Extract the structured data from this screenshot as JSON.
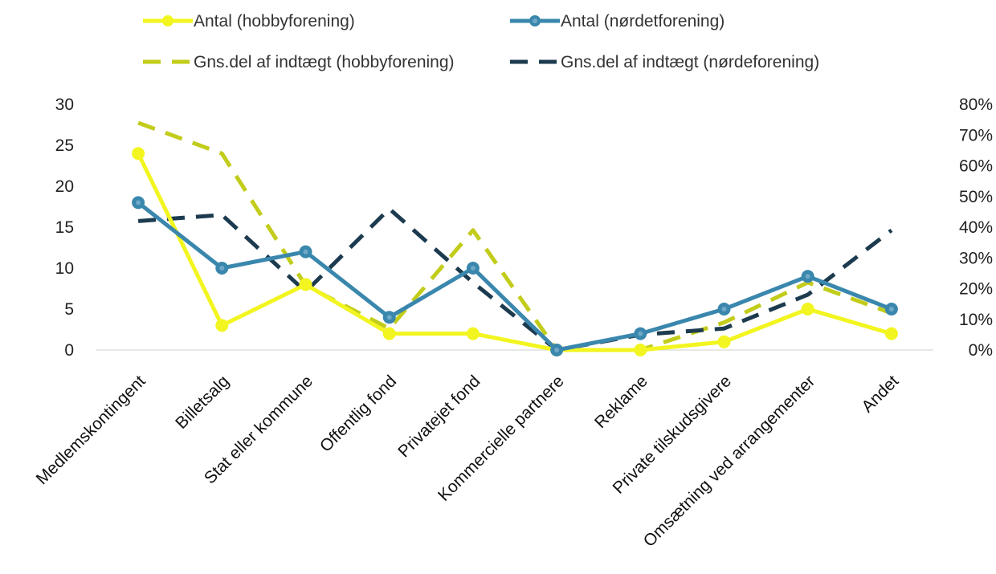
{
  "chart_data": {
    "type": "line",
    "categories": [
      "Medlemskontingent",
      "Billetsalg",
      "Stat eller kommune",
      "Offentlig fond",
      "Privatejet fond",
      "Kommercielle partnere",
      "Reklame",
      "Private tilskudsgivere",
      "Omsætning ved arrangementer",
      "Andet"
    ],
    "series": [
      {
        "name": "Antal (hobbyforening)",
        "axis": "left",
        "style": "solid-markers",
        "color": "#f2f51f",
        "values": [
          24,
          3,
          8,
          2,
          2,
          0,
          0,
          1,
          5,
          2
        ]
      },
      {
        "name": "Antal (nørdetforening)",
        "axis": "left",
        "style": "solid-markers",
        "color": "#3a87ad",
        "values": [
          18,
          10,
          12,
          4,
          10,
          0,
          2,
          5,
          9,
          5
        ]
      },
      {
        "name": "Gns.del af indtægt (hobbyforening)",
        "axis": "right",
        "style": "dashed",
        "color": "#c2cc1b",
        "values": [
          0.74,
          0.64,
          0.21,
          0.07,
          0.39,
          0.0,
          0.0,
          0.09,
          0.22,
          0.12
        ]
      },
      {
        "name": "Gns.del af indtægt (nørdeforening)",
        "axis": "right",
        "style": "dashed",
        "color": "#1d3b4f",
        "values": [
          0.42,
          0.44,
          0.19,
          0.46,
          0.22,
          0.0,
          0.05,
          0.07,
          0.18,
          0.39
        ]
      }
    ],
    "y_left": {
      "min": 0,
      "max": 30,
      "ticks": [
        "0",
        "5",
        "10",
        "15",
        "20",
        "25",
        "30"
      ]
    },
    "y_right": {
      "min": 0,
      "max": 0.8,
      "ticks": [
        "0%",
        "10%",
        "20%",
        "30%",
        "40%",
        "50%",
        "60%",
        "70%",
        "80%"
      ]
    },
    "title": "",
    "legend_position": "top",
    "grid": false
  }
}
